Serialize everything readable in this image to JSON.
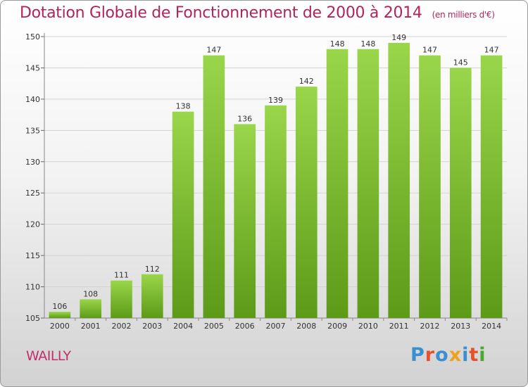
{
  "header": {
    "title": "Dotation Globale de Fonctionnement de 2000 à 2014",
    "subtitle": "(en milliers d'€)"
  },
  "footer": {
    "commune": "WAILLY",
    "brand": "Proxiti"
  },
  "colors": {
    "title": "#b0245c",
    "bar_top": "#9ad64a",
    "bar_bottom": "#5c9a18",
    "brand_letters": [
      "#3a8fd0",
      "#e8502a",
      "#3a8fd0",
      "#f0a020",
      "#3a8fd0",
      "#e8502a",
      "#4aa82a"
    ]
  },
  "chart_data": {
    "type": "bar",
    "title": "Dotation Globale de Fonctionnement de 2000 à 2014",
    "subtitle": "(en milliers d'€)",
    "xlabel": "",
    "ylabel": "",
    "categories": [
      "2000",
      "2001",
      "2002",
      "2003",
      "2004",
      "2005",
      "2006",
      "2007",
      "2008",
      "2009",
      "2010",
      "2011",
      "2012",
      "2013",
      "2014"
    ],
    "values": [
      106,
      108,
      111,
      112,
      138,
      147,
      136,
      139,
      142,
      148,
      148,
      149,
      147,
      145,
      147
    ],
    "ylim": [
      105,
      150
    ],
    "yticks": [
      105,
      110,
      115,
      120,
      125,
      130,
      135,
      140,
      145,
      150
    ],
    "grid": true,
    "data_labels": true
  }
}
